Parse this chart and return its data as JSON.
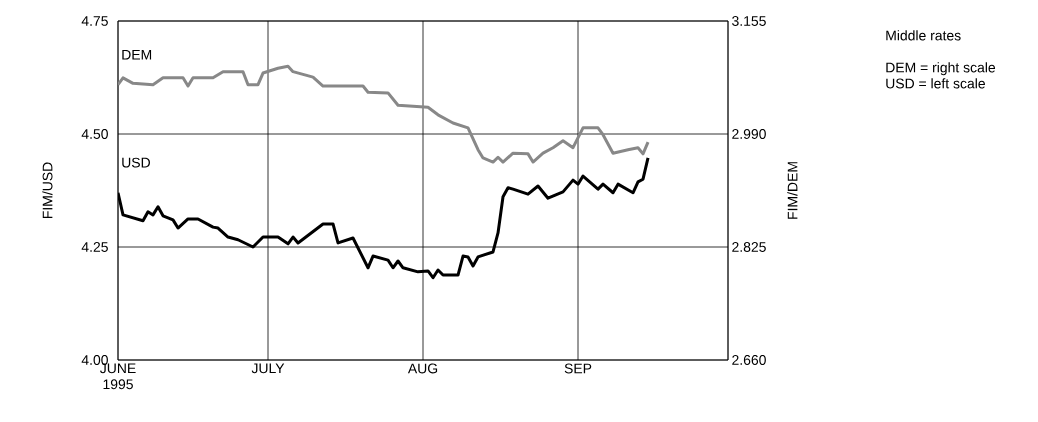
{
  "chart_data": {
    "type": "line",
    "annotations": [
      "Middle rates",
      "DEM = right scale",
      "USD = left scale"
    ],
    "ylabel": "FIM/USD",
    "y2label": "FIM/DEM",
    "xlim": [
      "1995-06-01",
      "1995-10-01"
    ],
    "xticks": [
      {
        "value": "1995-06-01",
        "label": "JUNE 1995"
      },
      {
        "value": "1995-07-01",
        "label": "JULY"
      },
      {
        "value": "1995-08-01",
        "label": "AUG"
      },
      {
        "value": "1995-09-01",
        "label": "SEP"
      }
    ],
    "ylim": [
      4.0,
      4.75
    ],
    "yticks": [
      {
        "value": 4.0,
        "label": "4.00"
      },
      {
        "value": 4.25,
        "label": "4.25"
      },
      {
        "value": 4.5,
        "label": "4.50"
      },
      {
        "value": 4.75,
        "label": "4.75"
      }
    ],
    "y2lim": [
      2.66,
      3.155
    ],
    "y2ticks": [
      {
        "value": 2.66,
        "label": "2.660"
      },
      {
        "value": 2.825,
        "label": "2.825"
      },
      {
        "value": 2.99,
        "label": "2.990"
      },
      {
        "value": 3.155,
        "label": "3.155"
      }
    ],
    "grid": true,
    "marker": "none",
    "line_style": "solid",
    "series": [
      {
        "name": "DEM",
        "color": "#888888",
        "axis": "y2",
        "x": [
          "1995-06-01",
          "1995-06-02",
          "1995-06-04",
          "1995-06-08",
          "1995-06-10",
          "1995-06-14",
          "1995-06-15",
          "1995-06-16",
          "1995-06-20",
          "1995-06-22",
          "1995-06-26",
          "1995-06-27",
          "1995-06-29",
          "1995-06-30",
          "1995-07-03",
          "1995-07-05",
          "1995-07-06",
          "1995-07-10",
          "1995-07-12",
          "1995-07-20",
          "1995-07-21",
          "1995-07-25",
          "1995-07-27",
          "1995-08-02",
          "1995-08-04",
          "1995-08-07",
          "1995-08-10",
          "1995-08-12",
          "1995-08-13",
          "1995-08-15",
          "1995-08-16",
          "1995-08-17",
          "1995-08-19",
          "1995-08-22",
          "1995-08-23",
          "1995-08-25",
          "1995-08-27",
          "1995-08-29",
          "1995-08-31",
          "1995-09-02",
          "1995-09-05",
          "1995-09-06",
          "1995-09-08",
          "1995-09-11",
          "1995-09-13",
          "1995-09-14",
          "1995-09-15"
        ],
        "values": [
          3.062,
          3.072,
          3.064,
          3.062,
          3.072,
          3.072,
          3.06,
          3.072,
          3.072,
          3.081,
          3.081,
          3.062,
          3.062,
          3.079,
          3.086,
          3.089,
          3.081,
          3.073,
          3.06,
          3.06,
          3.051,
          3.05,
          3.032,
          3.029,
          3.018,
          3.006,
          2.999,
          2.967,
          2.955,
          2.949,
          2.956,
          2.949,
          2.962,
          2.961,
          2.949,
          2.962,
          2.97,
          2.98,
          2.97,
          2.999,
          2.999,
          2.989,
          2.962,
          2.967,
          2.97,
          2.961,
          2.978
        ]
      },
      {
        "name": "USD",
        "color": "#000000",
        "x": [
          "1995-06-01",
          "1995-06-02",
          "1995-06-06",
          "1995-06-07",
          "1995-06-08",
          "1995-06-09",
          "1995-06-10",
          "1995-06-12",
          "1995-06-13",
          "1995-06-15",
          "1995-06-17",
          "1995-06-20",
          "1995-06-21",
          "1995-06-23",
          "1995-06-25",
          "1995-06-28",
          "1995-06-30",
          "1995-07-03",
          "1995-07-05",
          "1995-07-06",
          "1995-07-07",
          "1995-07-12",
          "1995-07-14",
          "1995-07-15",
          "1995-07-18",
          "1995-07-21",
          "1995-07-22",
          "1995-07-25",
          "1995-07-26",
          "1995-07-27",
          "1995-07-28",
          "1995-07-31",
          "1995-08-02",
          "1995-08-03",
          "1995-08-04",
          "1995-08-05",
          "1995-08-08",
          "1995-08-09",
          "1995-08-10",
          "1995-08-11",
          "1995-08-12",
          "1995-08-15",
          "1995-08-16",
          "1995-08-17",
          "1995-08-18",
          "1995-08-19",
          "1995-08-22",
          "1995-08-24",
          "1995-08-26",
          "1995-08-29",
          "1995-08-31",
          "1995-09-01",
          "1995-09-02",
          "1995-09-05",
          "1995-09-06",
          "1995-09-08",
          "1995-09-09",
          "1995-09-12",
          "1995-09-13",
          "1995-09-14",
          "1995-09-15"
        ],
        "values": [
          4.37,
          4.321,
          4.308,
          4.328,
          4.321,
          4.339,
          4.319,
          4.31,
          4.292,
          4.312,
          4.312,
          4.294,
          4.292,
          4.272,
          4.266,
          4.25,
          4.272,
          4.272,
          4.257,
          4.272,
          4.259,
          4.301,
          4.301,
          4.259,
          4.27,
          4.204,
          4.23,
          4.221,
          4.204,
          4.219,
          4.204,
          4.195,
          4.197,
          4.182,
          4.199,
          4.188,
          4.188,
          4.23,
          4.228,
          4.208,
          4.228,
          4.239,
          4.281,
          4.361,
          4.381,
          4.378,
          4.367,
          4.385,
          4.358,
          4.372,
          4.398,
          4.389,
          4.407,
          4.378,
          4.389,
          4.37,
          4.389,
          4.37,
          4.394,
          4.4,
          4.447
        ]
      }
    ]
  }
}
